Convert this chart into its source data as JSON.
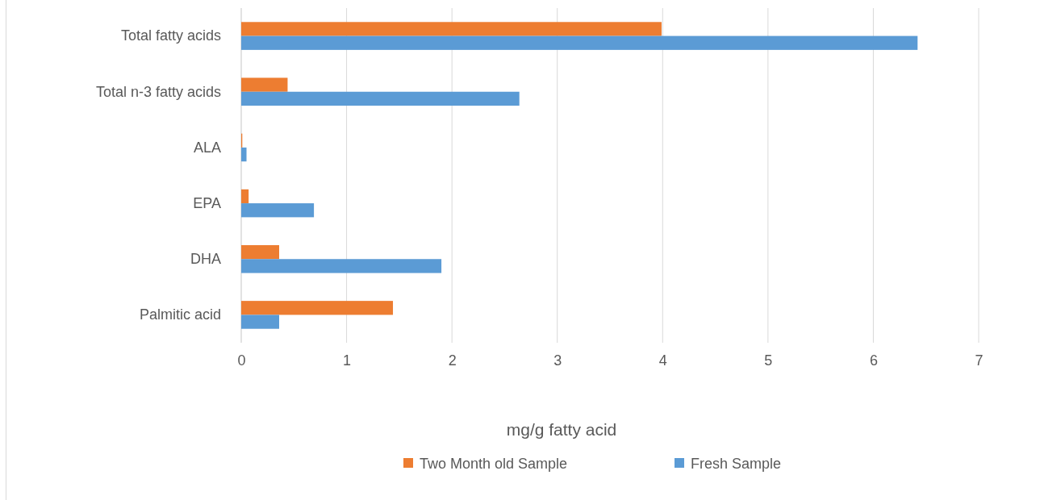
{
  "chart_data": {
    "type": "bar",
    "orientation": "horizontal",
    "xlabel": "mg/g fatty acid",
    "categories": [
      "Total fatty acids",
      "Total n-3 fatty acids",
      "ALA",
      "EPA",
      "DHA",
      "Palmitic acid"
    ],
    "series": [
      {
        "name": "Two Month old Sample",
        "color": "#ed7d31",
        "values": [
          3.99,
          0.44,
          0.01,
          0.07,
          0.36,
          1.44
        ]
      },
      {
        "name": "Fresh Sample",
        "color": "#5b9bd5",
        "values": [
          6.42,
          2.64,
          0.05,
          0.69,
          1.9,
          0.36
        ]
      }
    ],
    "xlim": [
      0,
      7
    ],
    "xticks": [
      0,
      1,
      2,
      3,
      4,
      5,
      6,
      7
    ],
    "grid": "x",
    "legend": "bottom"
  }
}
